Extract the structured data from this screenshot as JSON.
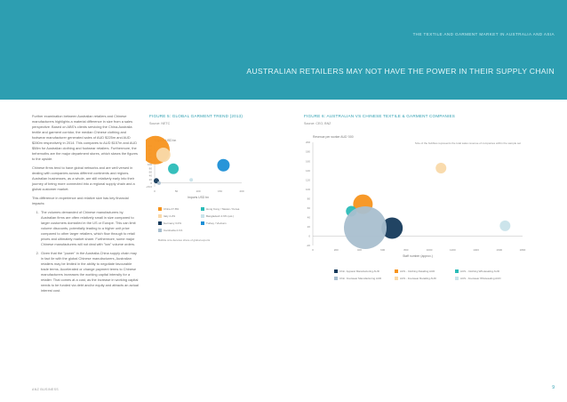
{
  "header": {
    "kicker": "THE TEXTILE AND GARMENT MARKET IN AUSTRALIA AND ASIA",
    "title": "AUSTRALIAN RETAILERS MAY NOT HAVE THE POWER IN THEIR SUPPLY CHAIN"
  },
  "body": {
    "p1": "Further examination between Australian retailers and Chinese manufacturers highlights a material difference in size from a sales perspective. Based on ABS's clients servicing the China-Australia textile and garment corridor, the median Chinese clothing and footwear manufacturer generated sales of AUD $225m and AUD $280m respectively in 2014. This compares to AUD $157m and AUD $58m for Australian clothing and footwear retailers. Furthermore, the behemoths are the major department stores, which skews the figures to the upside.",
    "p2": "Chinese firms tend to have global networks and are well versed in dealing with companies across different continents and regions. Australian businesses, as a whole, are still relatively early into their journey of being more connected into a regional supply chain and a global customer market.",
    "p3": "This difference in experience and relative size has key financial impacts:",
    "item1": "The volumes demanded of Chinese manufacturers by Australian firms are often relatively small in size compared to larger customers domiciled in the US or Europe. This can limit volume discounts, potentially leading to a higher unit price compared to other larger retailers, which flow through to retail prices and ultimately market share. Furthermore, some major Chinese manufacturers will not deal with \"low\" volume orders.",
    "item2": "Given that the \"power\" in the Australia-China supply chain may in fact lie with the global Chinese manufacturers, Australian retailers may be limited in the ability to negotiate favourable trade terms. Accelerated or change payment terms to Chinese manufacturers increases the working capital intensity for a retailer. That comes at a cost, as the increase in working capital needs to be funded via debt and/or equity and attracts an actual interest cost."
  },
  "figure5": {
    "title": "FIGURE 5: GLOBAL GARMENT TREND (2013)",
    "source": "Source: NETC",
    "ylabel": "Exports USD bn",
    "xlabel": "Imports USD bn",
    "note": "Bubble size denotes share of global exports",
    "legend": [
      "China 47.8%",
      "Hong Kong / Taiwan / Korea",
      "Italy 4.2%",
      "Bangladesh 2.9% (est.)",
      "Germany 3.0%",
      "Turkey / Vietnam",
      "Cambodia 2.1%"
    ],
    "colors": [
      "#f7941d",
      "#2bbcb8",
      "#f9d9a9",
      "#c9e3ea",
      "#153a5b",
      "#1c8fd6",
      "#a9bfcf"
    ]
  },
  "figure6": {
    "title": "FIGURE 6: AUSTRALIAN VS CHINESE TEXTILE & GARMENT COMPANIES",
    "source": "Source: CEO, BNZ",
    "ylabel": "Revenue per worker AUD '000",
    "xlabel": "Staff number (approx.)",
    "note": "Size of the bubbles represents the total sales revenue of companies within the sample set",
    "legend": [
      "Chin. Apparel Manufacturing AUD",
      "AUS - Clothing Retailing AUD",
      "AUS - Clothing Wholesaling AUD",
      "Chin. Footwear Manufacturing AUD",
      "AUS - Footwear Retailing AUD",
      "AUS - Footwear Wholesaling AUD"
    ],
    "colors": [
      "#153a5b",
      "#f7941d",
      "#2bbcb8",
      "#a9bfcf",
      "#f9d9a9",
      "#c9e3ea"
    ]
  },
  "chart_data": [
    {
      "type": "scatter",
      "title": "FIGURE 5: GLOBAL GARMENT TREND (2013)",
      "xlabel": "Imports USD bn",
      "ylabel": "Exports USD bn",
      "xlim": [
        0,
        200
      ],
      "ylim": [
        -20,
        200
      ],
      "xticks": [
        "0",
        "50",
        "100",
        "150",
        "200"
      ],
      "yticks": [
        "-20.0",
        "0",
        "20",
        "40",
        "60",
        "80",
        "100",
        "120",
        "140",
        "160",
        "180",
        "200"
      ],
      "series": [
        {
          "name": "China 47.8%",
          "x": [
            2
          ],
          "y": [
            177
          ],
          "size": [
            16
          ]
        },
        {
          "name": "Hong Kong / Taiwan / Korea",
          "x": [
            43
          ],
          "y": [
            77
          ],
          "size": [
            6
          ]
        },
        {
          "name": "Italy 4.2%",
          "x": [
            20
          ],
          "y": [
            152
          ],
          "size": [
            8
          ]
        },
        {
          "name": "Bangladesh 2.9% (est.)",
          "x": [
            84
          ],
          "y": [
            17
          ],
          "size": [
            2
          ]
        },
        {
          "name": "Germany 3.0%",
          "x": [
            4
          ],
          "y": [
            12
          ],
          "size": [
            3
          ]
        },
        {
          "name": "Turkey / Vietnam",
          "x": [
            158
          ],
          "y": [
            96
          ],
          "size": [
            7
          ]
        },
        {
          "name": "Cambodia 2.1%",
          "x": [
            10
          ],
          "y": [
            0
          ],
          "size": [
            2
          ]
        }
      ]
    },
    {
      "type": "scatter",
      "title": "FIGURE 6: AUSTRALIAN VS CHINESE TEXTILE & GARMENT COMPANIES",
      "xlabel": "Staff number (approx.)",
      "ylabel": "Revenue per worker AUD '000",
      "xlim": [
        0,
        1800
      ],
      "ylim": [
        -20,
        200
      ],
      "xticks": [
        "0",
        "200",
        "400",
        "600",
        "800",
        "1000",
        "1200",
        "1400",
        "1600",
        "1800"
      ],
      "yticks": [
        "-20",
        "0",
        "20",
        "40",
        "60",
        "80",
        "100",
        "120",
        "140",
        "160",
        "180",
        "200"
      ],
      "series": [
        {
          "name": "Chin. Apparel Manufacturing AUD",
          "x": [
            680
          ],
          "y": [
            17
          ],
          "size": [
            12
          ]
        },
        {
          "name": "AUS - Clothing Retailing AUD",
          "x": [
            430
          ],
          "y": [
            68
          ],
          "size": [
            11
          ]
        },
        {
          "name": "AUS - Clothing Wholesaling AUD",
          "x": [
            330
          ],
          "y": [
            53
          ],
          "size": [
            6
          ]
        },
        {
          "name": "Chin. Footwear Manufacturing AUD",
          "x": [
            450
          ],
          "y": [
            18
          ],
          "size": [
            24
          ]
        },
        {
          "name": "AUS - Footwear Retailing AUD",
          "x": [
            1100
          ],
          "y": [
            145
          ],
          "size": [
            6
          ]
        },
        {
          "name": "AUS - Footwear Wholesaling AUD",
          "x": [
            1650
          ],
          "y": [
            22
          ],
          "size": [
            6
          ]
        }
      ]
    }
  ],
  "footer": {
    "left": "ANZ BUSINESS",
    "page": "9"
  }
}
